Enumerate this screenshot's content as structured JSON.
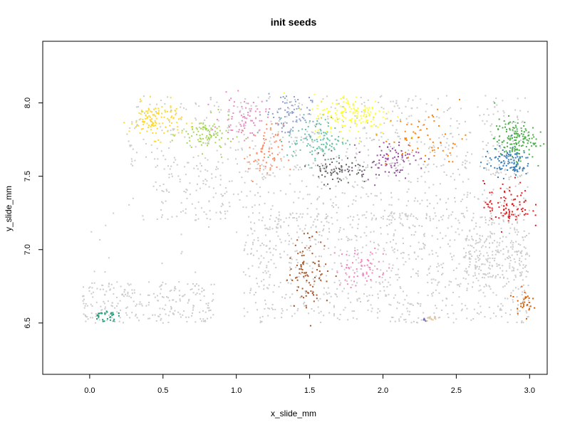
{
  "chart_data": {
    "type": "scatter",
    "title": "init seeds",
    "xlabel": "x_slide_mm",
    "ylabel": "y_slide_mm",
    "xlim": [
      -0.32,
      3.12
    ],
    "ylim": [
      6.15,
      8.42
    ],
    "x_ticks": [
      "0.0",
      "0.5",
      "1.0",
      "1.5",
      "2.0",
      "2.5",
      "3.0"
    ],
    "x_tick_values": [
      0.0,
      0.5,
      1.0,
      1.5,
      2.0,
      2.5,
      3.0
    ],
    "y_ticks": [
      "6.5",
      "7.0",
      "7.5",
      "8.0"
    ],
    "y_tick_values": [
      6.5,
      7.0,
      7.5,
      8.0
    ],
    "grid": false,
    "background_color": "#cccccc",
    "background_regions": [
      {
        "x": [
          0.25,
          3.0
        ],
        "y": [
          7.55,
          8.05
        ],
        "n": 520
      },
      {
        "x": [
          0.45,
          3.0
        ],
        "y": [
          7.2,
          7.6
        ],
        "n": 420
      },
      {
        "x": [
          1.05,
          3.0
        ],
        "y": [
          6.5,
          7.25
        ],
        "n": 900
      },
      {
        "x": [
          -0.05,
          0.85
        ],
        "y": [
          6.5,
          6.78
        ],
        "n": 260
      },
      {
        "x": [
          2.55,
          3.0
        ],
        "y": [
          6.8,
          7.1
        ],
        "n": 150
      },
      {
        "x": [
          0.0,
          1.2
        ],
        "y": [
          6.8,
          7.5
        ],
        "n": 40
      }
    ],
    "clusters": [
      {
        "color": "#ffd92f",
        "x": 0.45,
        "y": 7.88,
        "sx": 0.09,
        "sy": 0.06,
        "n": 120
      },
      {
        "color": "#a6d854",
        "x": 0.8,
        "y": 7.78,
        "sx": 0.09,
        "sy": 0.06,
        "n": 90
      },
      {
        "color": "#e78ac3",
        "x": 1.05,
        "y": 7.9,
        "sx": 0.08,
        "sy": 0.07,
        "n": 70
      },
      {
        "color": "#8da0cb",
        "x": 1.35,
        "y": 7.92,
        "sx": 0.08,
        "sy": 0.08,
        "n": 80
      },
      {
        "color": "#fc8d62",
        "x": 1.2,
        "y": 7.65,
        "sx": 0.06,
        "sy": 0.1,
        "n": 70
      },
      {
        "color": "#66c2a5",
        "x": 1.55,
        "y": 7.75,
        "sx": 0.1,
        "sy": 0.08,
        "n": 110
      },
      {
        "color": "#ffff33",
        "x": 1.8,
        "y": 7.92,
        "sx": 0.14,
        "sy": 0.07,
        "n": 150
      },
      {
        "color": "#666666",
        "x": 1.7,
        "y": 7.55,
        "sx": 0.1,
        "sy": 0.05,
        "n": 80
      },
      {
        "color": "#984ea3",
        "x": 2.05,
        "y": 7.62,
        "sx": 0.1,
        "sy": 0.06,
        "n": 80
      },
      {
        "color": "#ff7f00",
        "x": 2.3,
        "y": 7.75,
        "sx": 0.14,
        "sy": 0.1,
        "n": 60
      },
      {
        "color": "#4daf4a",
        "x": 2.9,
        "y": 7.75,
        "sx": 0.07,
        "sy": 0.07,
        "n": 150
      },
      {
        "color": "#377eb8",
        "x": 2.85,
        "y": 7.6,
        "sx": 0.08,
        "sy": 0.05,
        "n": 100
      },
      {
        "color": "#e41a1c",
        "x": 2.85,
        "y": 7.3,
        "sx": 0.08,
        "sy": 0.08,
        "n": 90
      },
      {
        "color": "#a65628",
        "x": 1.5,
        "y": 6.85,
        "sx": 0.07,
        "sy": 0.12,
        "n": 90
      },
      {
        "color": "#f781bf",
        "x": 1.85,
        "y": 6.88,
        "sx": 0.09,
        "sy": 0.07,
        "n": 60
      },
      {
        "color": "#d95f02",
        "x": 2.96,
        "y": 6.65,
        "sx": 0.03,
        "sy": 0.04,
        "n": 30
      },
      {
        "color": "#1b9e77",
        "x": 0.1,
        "y": 6.55,
        "sx": 0.04,
        "sy": 0.02,
        "n": 30
      },
      {
        "color": "#e5c494",
        "x": 2.33,
        "y": 6.53,
        "sx": 0.02,
        "sy": 0.015,
        "n": 10
      },
      {
        "color": "#7570b3",
        "x": 2.28,
        "y": 6.52,
        "sx": 0.01,
        "sy": 0.01,
        "n": 5
      }
    ]
  }
}
